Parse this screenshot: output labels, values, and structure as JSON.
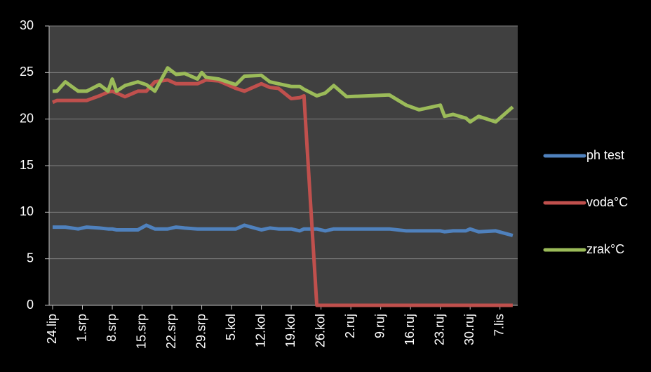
{
  "chart_data": {
    "type": "line",
    "x": [
      "24.lip",
      "25.lip",
      "27.lip",
      "30.lip",
      "2.srp",
      "5.srp",
      "7.srp",
      "8.srp",
      "9.srp",
      "11.srp",
      "14.srp",
      "16.srp",
      "18.srp",
      "21.srp",
      "23.srp",
      "25.srp",
      "28.srp",
      "29.srp",
      "30.srp",
      "2.kol",
      "6.kol",
      "8.kol",
      "12.kol",
      "14.kol",
      "16.kol",
      "19.kol",
      "21.kol",
      "22.kol",
      "25.kol",
      "27.kol",
      "29.kol",
      "1.ruj",
      "11.ruj",
      "15.ruj",
      "18.ruj",
      "23.ruj",
      "24.ruj",
      "26.ruj",
      "29.ruj",
      "30.ruj",
      "2.lis",
      "6.lis",
      "10.lis"
    ],
    "series": [
      {
        "name": "ph test",
        "color": "#4f81bd",
        "values": [
          8.4,
          8.4,
          8.4,
          8.2,
          8.4,
          8.3,
          8.2,
          8.2,
          8.1,
          8.1,
          8.1,
          8.6,
          8.2,
          8.2,
          8.4,
          8.3,
          8.2,
          8.2,
          8.2,
          8.2,
          8.2,
          8.6,
          8.1,
          8.3,
          8.2,
          8.2,
          8.0,
          8.2,
          8.2,
          8.0,
          8.2,
          8.2,
          8.2,
          8.0,
          8.0,
          8.0,
          7.9,
          8.0,
          8.0,
          8.2,
          7.9,
          8.0,
          7.5
        ]
      },
      {
        "name": "voda°C",
        "color": "#c0504d",
        "values": [
          21.8,
          22,
          22,
          22,
          22,
          22.5,
          22.9,
          23,
          22.8,
          22.4,
          23,
          23,
          24,
          24.2,
          23.8,
          23.8,
          23.8,
          24,
          24.2,
          24.1,
          23.3,
          23,
          23.8,
          23.4,
          23.3,
          22.2,
          22.3,
          22.5,
          0,
          0,
          0,
          0,
          0,
          0,
          0,
          0,
          0,
          0,
          0,
          0,
          0,
          0,
          0
        ]
      },
      {
        "name": "zrak°C",
        "color": "#9bbb59",
        "values": [
          23,
          23,
          24,
          23,
          23,
          23.7,
          23,
          24.3,
          23,
          23.6,
          24,
          23.7,
          23,
          25.5,
          24.8,
          24.9,
          24.3,
          25,
          24.5,
          24.3,
          23.7,
          24.6,
          24.7,
          24,
          23.8,
          23.5,
          23.5,
          23.2,
          22.5,
          22.8,
          23.6,
          22.4,
          22.6,
          21.5,
          21,
          21.5,
          20.3,
          20.5,
          20.1,
          19.7,
          20.3,
          19.7,
          21.3
        ]
      }
    ],
    "xlim": [
      "24.lip",
      "11.lis"
    ],
    "xticks": [
      "24.lip",
      "1.srp",
      "8.srp",
      "15.srp",
      "22.srp",
      "29.srp",
      "5.kol",
      "12.kol",
      "19.kol",
      "26.kol",
      "2.ruj",
      "9.ruj",
      "16.ruj",
      "23.ruj",
      "30.ruj",
      "7.lis"
    ],
    "ylim": [
      0,
      30
    ],
    "yticks": [
      0,
      5,
      10,
      15,
      20,
      25,
      30
    ],
    "grid": true,
    "legend": "right"
  }
}
